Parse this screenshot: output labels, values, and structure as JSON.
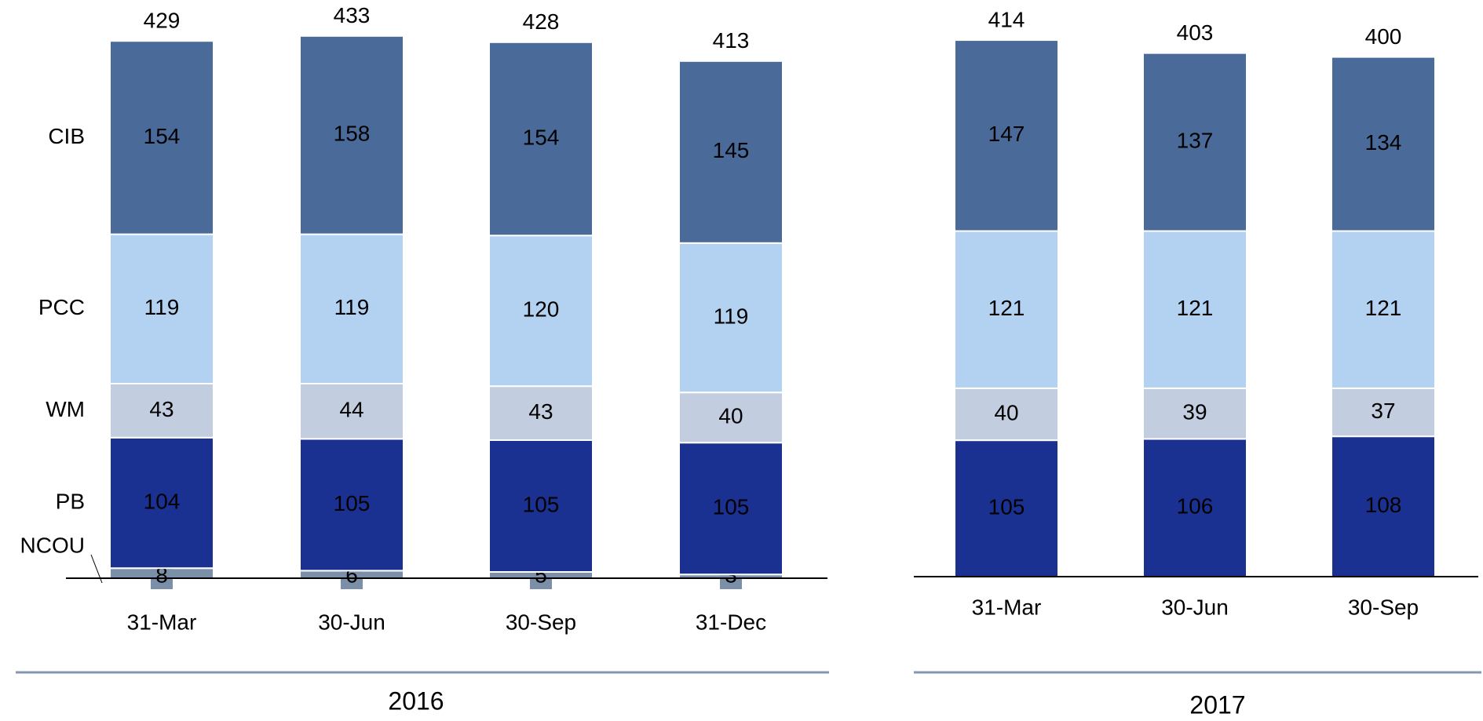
{
  "chart_data": [
    {
      "type": "bar",
      "stacked": true,
      "xlabel": "2016",
      "categories": [
        "31-Mar",
        "30-Jun",
        "30-Sep",
        "31-Dec"
      ],
      "series": [
        {
          "name": "NCOU",
          "color": "#7b90a8",
          "values": [
            8,
            6,
            5,
            3
          ]
        },
        {
          "name": "PB",
          "color": "#1a3192",
          "values": [
            104,
            105,
            105,
            105
          ]
        },
        {
          "name": "WM",
          "color": "#c3cde0",
          "values": [
            43,
            44,
            43,
            40
          ]
        },
        {
          "name": "PCC",
          "color": "#b3d1f0",
          "values": [
            119,
            119,
            120,
            119
          ]
        },
        {
          "name": "CIB",
          "color": "#4a6b9a",
          "values": [
            154,
            158,
            154,
            145
          ]
        }
      ],
      "totals": [
        429,
        433,
        428,
        413
      ]
    },
    {
      "type": "bar",
      "stacked": true,
      "xlabel": "2017",
      "categories": [
        "31-Mar",
        "30-Jun",
        "30-Sep"
      ],
      "series": [
        {
          "color": "#1a3192",
          "values": [
            105,
            106,
            108
          ]
        },
        {
          "color": "#c3cde0",
          "values": [
            40,
            39,
            37
          ]
        },
        {
          "color": "#b3d1f0",
          "values": [
            121,
            121,
            121
          ]
        },
        {
          "color": "#4a6b9a",
          "values": [
            147,
            137,
            134
          ]
        }
      ],
      "totals": [
        414,
        403,
        400
      ]
    }
  ]
}
